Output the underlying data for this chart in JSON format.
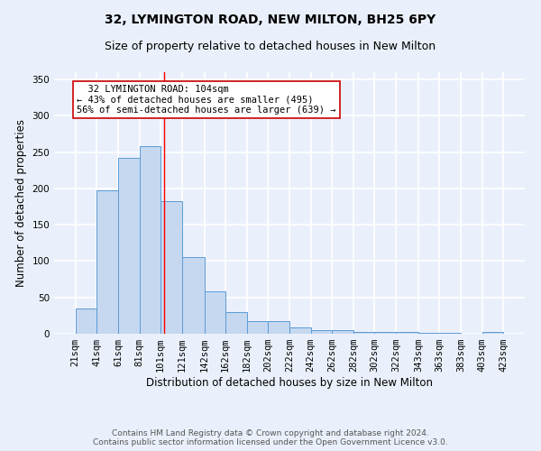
{
  "title": "32, LYMINGTON ROAD, NEW MILTON, BH25 6PY",
  "subtitle": "Size of property relative to detached houses in New Milton",
  "xlabel": "Distribution of detached houses by size in New Milton",
  "ylabel": "Number of detached properties",
  "bar_color": "#c5d8f0",
  "bar_edge_color": "#5b9bd5",
  "background_color": "#eaf0fb",
  "grid_color": "#ffffff",
  "bins": [
    21,
    41,
    61,
    81,
    101,
    121,
    142,
    162,
    182,
    202,
    222,
    242,
    262,
    282,
    302,
    322,
    343,
    363,
    383,
    403,
    423
  ],
  "bin_labels": [
    "21sqm",
    "41sqm",
    "61sqm",
    "81sqm",
    "101sqm",
    "121sqm",
    "142sqm",
    "162sqm",
    "182sqm",
    "202sqm",
    "222sqm",
    "242sqm",
    "262sqm",
    "282sqm",
    "302sqm",
    "322sqm",
    "343sqm",
    "363sqm",
    "383sqm",
    "403sqm",
    "423sqm"
  ],
  "values": [
    35,
    197,
    242,
    258,
    182,
    105,
    58,
    30,
    18,
    18,
    9,
    5,
    5,
    3,
    2,
    2,
    1,
    1,
    0,
    3
  ],
  "red_line_x": 104,
  "annotation_text": "  32 LYMINGTON ROAD: 104sqm\n← 43% of detached houses are smaller (495)\n56% of semi-detached houses are larger (639) →",
  "annotation_box_color": "#ffffff",
  "annotation_border_color": "#cc0000",
  "ylim": [
    0,
    360
  ],
  "yticks": [
    0,
    50,
    100,
    150,
    200,
    250,
    300,
    350
  ],
  "footer_text": "Contains HM Land Registry data © Crown copyright and database right 2024.\nContains public sector information licensed under the Open Government Licence v3.0.",
  "title_fontsize": 10,
  "subtitle_fontsize": 9,
  "ylabel_fontsize": 8.5,
  "xlabel_fontsize": 8.5,
  "tick_fontsize": 7.5,
  "annotation_fontsize": 7.5,
  "footer_fontsize": 6.5
}
